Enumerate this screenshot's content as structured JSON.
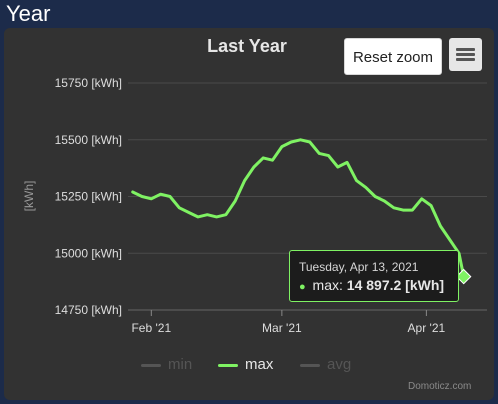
{
  "page": {
    "header": "Year"
  },
  "toolbar": {
    "reset_zoom_label": "Reset zoom",
    "menu_icon": "hamburger-menu-icon"
  },
  "chart_data": {
    "type": "line",
    "title": "Last Year",
    "ylabel": "[kWh]",
    "xlabel": "",
    "ylim": [
      14750,
      15750
    ],
    "yticks": [
      15750,
      15500,
      15250,
      15000,
      14750
    ],
    "yticklabels": [
      "15750 [kWh]",
      "15500 [kWh]",
      "15250 [kWh]",
      "15000 [kWh]",
      "14750 [kWh]"
    ],
    "xlim": [
      "2021-01-31",
      "2021-04-18"
    ],
    "xticks": [
      "2021-02-05",
      "2021-03-05",
      "2021-04-05"
    ],
    "xticklabels": [
      "Feb '21",
      "Mar '21",
      "Apr '21"
    ],
    "grid": true,
    "legend": {
      "position": "bottom",
      "entries": [
        "min",
        "max",
        "avg"
      ],
      "hidden": [
        "min",
        "avg"
      ]
    },
    "colors": {
      "max": "#7ff263",
      "inactive": "#555555",
      "grid": "#4a4a4a",
      "axis_text": "#dddddd",
      "plot_bg": "#323232"
    },
    "series": [
      {
        "name": "max",
        "x": [
          "2021-02-01",
          "2021-02-03",
          "2021-02-05",
          "2021-02-07",
          "2021-02-09",
          "2021-02-11",
          "2021-02-13",
          "2021-02-15",
          "2021-02-17",
          "2021-02-19",
          "2021-02-21",
          "2021-02-23",
          "2021-02-25",
          "2021-02-27",
          "2021-03-01",
          "2021-03-03",
          "2021-03-05",
          "2021-03-07",
          "2021-03-09",
          "2021-03-11",
          "2021-03-13",
          "2021-03-15",
          "2021-03-17",
          "2021-03-19",
          "2021-03-21",
          "2021-03-23",
          "2021-03-25",
          "2021-03-27",
          "2021-03-29",
          "2021-03-31",
          "2021-04-02",
          "2021-04-04",
          "2021-04-06",
          "2021-04-08",
          "2021-04-10",
          "2021-04-12",
          "2021-04-13"
        ],
        "values": [
          15270,
          15250,
          15240,
          15260,
          15250,
          15200,
          15180,
          15160,
          15170,
          15160,
          15170,
          15230,
          15320,
          15380,
          15420,
          15410,
          15470,
          15490,
          15500,
          15490,
          15440,
          15430,
          15380,
          15400,
          15320,
          15290,
          15250,
          15230,
          15200,
          15190,
          15190,
          15240,
          15210,
          15120,
          15060,
          15000,
          14897.2
        ]
      }
    ]
  },
  "tooltip": {
    "date": "Tuesday, Apr 13, 2021",
    "series_label": "max:",
    "value": "14 897.2 [kWh]"
  },
  "legend": {
    "min": "min",
    "max": "max",
    "avg": "avg"
  },
  "credits": "Domoticz.com"
}
